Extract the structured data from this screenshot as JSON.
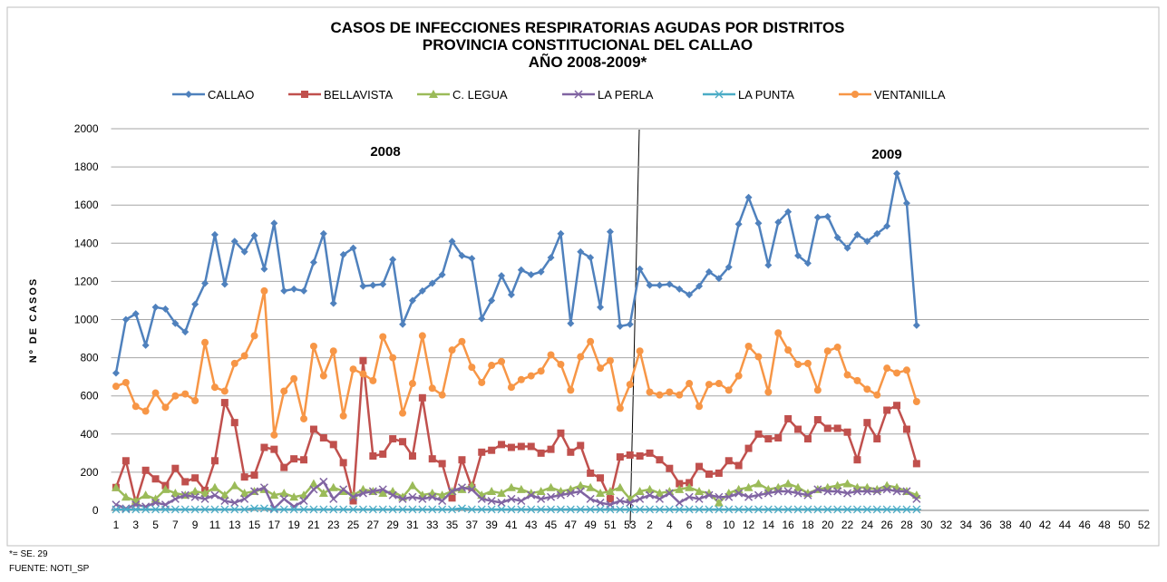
{
  "chart_data": {
    "type": "line",
    "title": [
      "CASOS DE INFECCIONES RESPIRATORIAS AGUDAS POR DISTRITOS",
      "PROVINCIA CONSTITUCIONAL DEL CALLAO",
      "AÑO 2008-2009*"
    ],
    "y_label": "Nº DE CASOS",
    "annotations": [
      "2008",
      "2009"
    ],
    "footnote": "*= SE. 29",
    "source": "FUENTE: NOTI_SP",
    "ylim": [
      0,
      2000
    ],
    "yticks": [
      0,
      200,
      400,
      600,
      800,
      1000,
      1200,
      1400,
      1600,
      1800,
      2000
    ],
    "grid": true,
    "legend": "top",
    "categories": [
      "1",
      null,
      "3",
      null,
      "5",
      null,
      "7",
      null,
      "9",
      null,
      "11",
      null,
      "13",
      null,
      "15",
      null,
      "17",
      null,
      "19",
      null,
      "21",
      null,
      "23",
      null,
      "25",
      null,
      "27",
      null,
      "29",
      null,
      "31",
      null,
      "33",
      null,
      "35",
      null,
      "37",
      null,
      "39",
      null,
      "41",
      null,
      "43",
      null,
      "45",
      null,
      "47",
      null,
      "49",
      null,
      "51",
      null,
      "53",
      null,
      "2",
      null,
      "4",
      null,
      "6",
      null,
      "8",
      null,
      "10",
      null,
      "12",
      null,
      "14",
      null,
      "16",
      null,
      "18",
      null,
      "20",
      null,
      "22",
      null,
      "24",
      null,
      "26",
      null,
      "28",
      null,
      "30",
      null,
      "32",
      null,
      "34",
      null,
      "36",
      null,
      "38",
      null,
      "40",
      null,
      "42",
      null,
      "44",
      null,
      "46",
      null,
      "48",
      null,
      "50",
      null,
      "52"
    ],
    "series": [
      {
        "name": "CALLAO",
        "color": "#4f81bd",
        "marker": "diamond",
        "values": [
          720,
          1000,
          1030,
          865,
          1065,
          1055,
          980,
          935,
          1080,
          1190,
          1445,
          1185,
          1410,
          1355,
          1440,
          1265,
          1505,
          1150,
          1160,
          1150,
          1300,
          1450,
          1085,
          1340,
          1375,
          1175,
          1180,
          1185,
          1315,
          975,
          1100,
          1150,
          1190,
          1235,
          1410,
          1335,
          1320,
          1005,
          1100,
          1230,
          1130,
          1260,
          1235,
          1250,
          1325,
          1450,
          980,
          1355,
          1325,
          1065,
          1460,
          965,
          975,
          1265,
          1180,
          1180,
          1185,
          1160,
          1130,
          1175,
          1250,
          1215,
          1275,
          1500,
          1640,
          1505,
          1285,
          1510,
          1565,
          1335,
          1295,
          1535,
          1540,
          1430,
          1375,
          1445,
          1410,
          1450,
          1490,
          1765,
          1610,
          970,
          null,
          null,
          null,
          null,
          null,
          null,
          null,
          null,
          null,
          null,
          null,
          null,
          null,
          null,
          null,
          null,
          null,
          null,
          null,
          null,
          null,
          null,
          null
        ]
      },
      {
        "name": "BELLAVISTA",
        "color": "#c0504d",
        "marker": "square",
        "values": [
          120,
          260,
          40,
          210,
          165,
          130,
          220,
          150,
          170,
          105,
          260,
          565,
          460,
          175,
          185,
          330,
          320,
          225,
          270,
          265,
          425,
          380,
          345,
          250,
          50,
          785,
          285,
          295,
          375,
          360,
          285,
          590,
          270,
          245,
          65,
          265,
          120,
          305,
          315,
          345,
          330,
          335,
          335,
          300,
          320,
          405,
          305,
          340,
          195,
          170,
          60,
          280,
          290,
          285,
          300,
          265,
          220,
          140,
          145,
          230,
          190,
          195,
          260,
          235,
          325,
          400,
          375,
          380,
          480,
          425,
          375,
          475,
          430,
          430,
          410,
          265,
          460,
          375,
          525,
          550,
          425,
          245,
          null,
          null,
          null,
          null,
          null,
          null,
          null,
          null,
          null,
          null,
          null,
          null,
          null,
          null,
          null,
          null,
          null,
          null,
          null,
          null,
          null,
          null,
          null
        ]
      },
      {
        "name": "C. LEGUA",
        "color": "#9bbb59",
        "marker": "triangle",
        "values": [
          120,
          70,
          50,
          80,
          60,
          110,
          90,
          80,
          100,
          90,
          120,
          80,
          130,
          90,
          100,
          110,
          80,
          90,
          70,
          80,
          140,
          90,
          120,
          100,
          80,
          110,
          100,
          90,
          100,
          70,
          130,
          80,
          90,
          80,
          100,
          110,
          130,
          80,
          100,
          90,
          120,
          110,
          90,
          100,
          120,
          100,
          110,
          130,
          120,
          90,
          100,
          120,
          60,
          100,
          110,
          90,
          100,
          110,
          120,
          100,
          90,
          40,
          90,
          110,
          120,
          140,
          110,
          120,
          140,
          120,
          90,
          110,
          120,
          130,
          140,
          120,
          120,
          110,
          130,
          120,
          100,
          80,
          null,
          null,
          null,
          null,
          null,
          null,
          null,
          null,
          null,
          null,
          null,
          null,
          null,
          null,
          null,
          null,
          null,
          null,
          null,
          null,
          null,
          null,
          null
        ]
      },
      {
        "name": "LA PERLA",
        "color": "#8064a2",
        "marker": "x",
        "values": [
          30,
          10,
          30,
          20,
          40,
          30,
          60,
          80,
          70,
          60,
          80,
          50,
          40,
          60,
          100,
          120,
          10,
          60,
          20,
          50,
          110,
          150,
          60,
          110,
          70,
          90,
          100,
          110,
          80,
          60,
          70,
          60,
          70,
          50,
          100,
          120,
          110,
          60,
          50,
          40,
          60,
          50,
          80,
          60,
          70,
          80,
          90,
          100,
          60,
          40,
          30,
          50,
          40,
          60,
          80,
          60,
          90,
          40,
          70,
          60,
          80,
          70,
          70,
          90,
          70,
          80,
          90,
          100,
          100,
          90,
          80,
          110,
          100,
          100,
          90,
          100,
          100,
          100,
          110,
          100,
          100,
          60,
          null,
          null,
          null,
          null,
          null,
          null,
          null,
          null,
          null,
          null,
          null,
          null,
          null,
          null,
          null,
          null,
          null,
          null,
          null,
          null,
          null,
          null,
          null
        ]
      },
      {
        "name": "LA PUNTA",
        "color": "#4bacc6",
        "marker": "star",
        "values": [
          5,
          5,
          5,
          5,
          5,
          5,
          5,
          5,
          5,
          5,
          5,
          5,
          5,
          5,
          10,
          10,
          5,
          5,
          5,
          5,
          5,
          5,
          5,
          5,
          5,
          5,
          5,
          5,
          5,
          5,
          5,
          5,
          5,
          5,
          5,
          10,
          5,
          5,
          5,
          5,
          5,
          5,
          5,
          5,
          5,
          5,
          5,
          5,
          5,
          5,
          5,
          5,
          5,
          5,
          5,
          5,
          5,
          5,
          5,
          5,
          5,
          5,
          5,
          5,
          5,
          5,
          5,
          5,
          5,
          5,
          5,
          5,
          5,
          5,
          5,
          5,
          5,
          5,
          5,
          5,
          5,
          5,
          null,
          null,
          null,
          null,
          null,
          null,
          null,
          null,
          null,
          null,
          null,
          null,
          null,
          null,
          null,
          null,
          null,
          null,
          null,
          null,
          null,
          null,
          null
        ]
      },
      {
        "name": "VENTANILLA",
        "color": "#f79646",
        "marker": "circle",
        "values": [
          650,
          670,
          545,
          520,
          615,
          540,
          600,
          610,
          575,
          880,
          645,
          625,
          770,
          810,
          915,
          1150,
          395,
          625,
          690,
          480,
          860,
          705,
          835,
          495,
          740,
          715,
          680,
          910,
          800,
          510,
          665,
          915,
          640,
          605,
          840,
          885,
          750,
          670,
          760,
          780,
          645,
          685,
          705,
          730,
          815,
          765,
          630,
          805,
          885,
          745,
          785,
          535,
          660,
          835,
          620,
          605,
          620,
          605,
          665,
          545,
          660,
          665,
          630,
          705,
          860,
          805,
          620,
          930,
          840,
          765,
          770,
          630,
          835,
          855,
          710,
          680,
          635,
          605,
          745,
          720,
          735,
          570,
          null,
          null,
          null,
          null,
          null,
          null,
          null,
          null,
          null,
          null,
          null,
          null,
          null,
          null,
          null,
          null,
          null,
          null,
          null,
          null,
          null,
          null,
          null
        ]
      }
    ]
  }
}
